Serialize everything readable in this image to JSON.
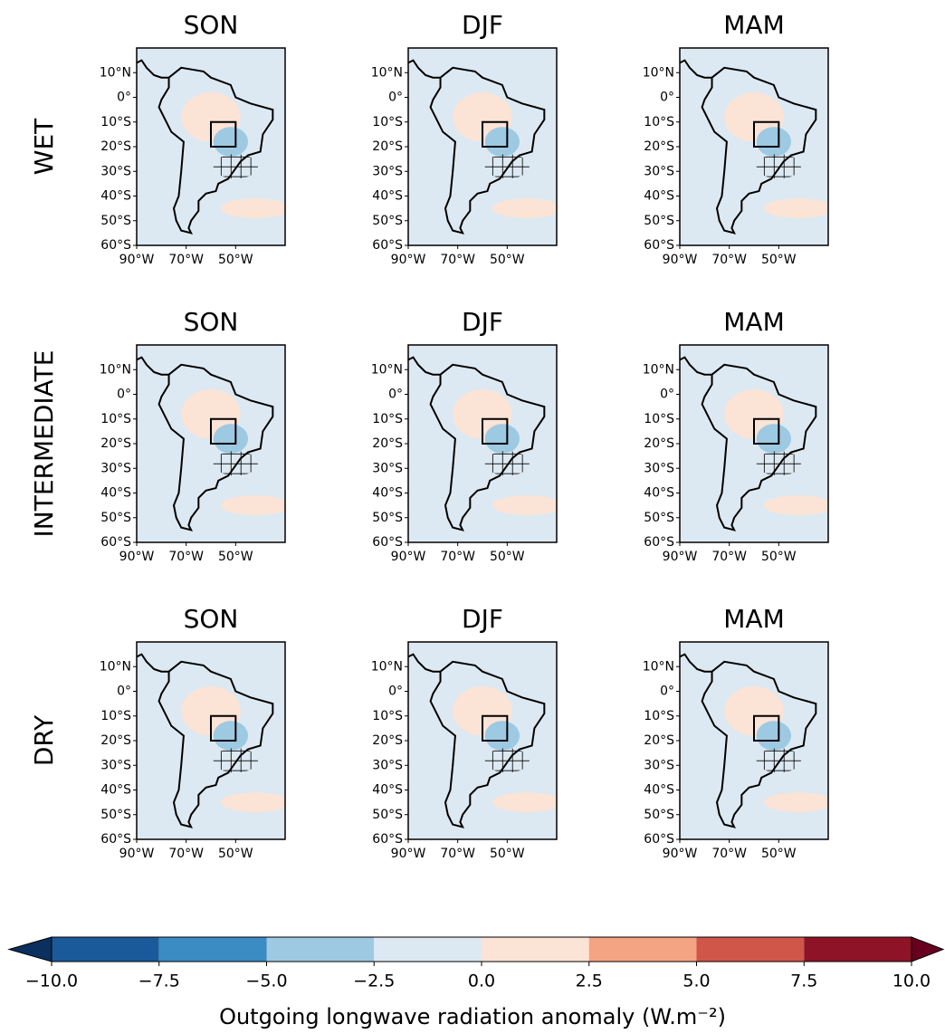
{
  "axes": {
    "xlim": [
      -90,
      -30
    ],
    "ylim": [
      -60,
      20
    ],
    "lat_ticks": [
      {
        "value": 10,
        "label": "10°N"
      },
      {
        "value": 0,
        "label": "0°"
      },
      {
        "value": -10,
        "label": "10°S"
      },
      {
        "value": -20,
        "label": "20°S"
      },
      {
        "value": -30,
        "label": "30°S"
      },
      {
        "value": -40,
        "label": "40°S"
      },
      {
        "value": -50,
        "label": "50°S"
      },
      {
        "value": -60,
        "label": "60°S"
      }
    ],
    "lon_ticks": [
      {
        "value": -90,
        "label": "90°W"
      },
      {
        "value": -70,
        "label": "70°W"
      },
      {
        "value": -50,
        "label": "50°W"
      }
    ]
  },
  "rows": [
    {
      "label": "WET",
      "panels": [
        {
          "title": "SON"
        },
        {
          "title": "DJF"
        },
        {
          "title": "MAM"
        }
      ]
    },
    {
      "label": "INTERMEDIATE",
      "panels": [
        {
          "title": "SON"
        },
        {
          "title": "DJF"
        },
        {
          "title": "MAM"
        }
      ]
    },
    {
      "label": "DRY",
      "panels": [
        {
          "title": "SON"
        },
        {
          "title": "DJF"
        },
        {
          "title": "MAM"
        }
      ]
    }
  ],
  "colorbar": {
    "label": "Outgoing longwave radiation anomaly (W.m⁻²)",
    "lim": [
      -10,
      10
    ],
    "ticks": [
      {
        "value": -10,
        "label": "−10.0"
      },
      {
        "value": -7.5,
        "label": "−7.5"
      },
      {
        "value": -5,
        "label": "−5.0"
      },
      {
        "value": -2.5,
        "label": "−2.5"
      },
      {
        "value": 0,
        "label": "0.0"
      },
      2.5,
      {
        "value": 5,
        "label": "5.0"
      },
      7.5,
      {
        "value": 10,
        "label": "10.0"
      }
    ],
    "colors": [
      "#1b5a9a",
      "#3a8cc2",
      "#9ec9e2",
      "#dce9f2",
      "#fbe3d6",
      "#f4a482",
      "#d0564a",
      "#8e1326"
    ],
    "under_color": "#0b3060",
    "over_color": "#67001f"
  }
}
